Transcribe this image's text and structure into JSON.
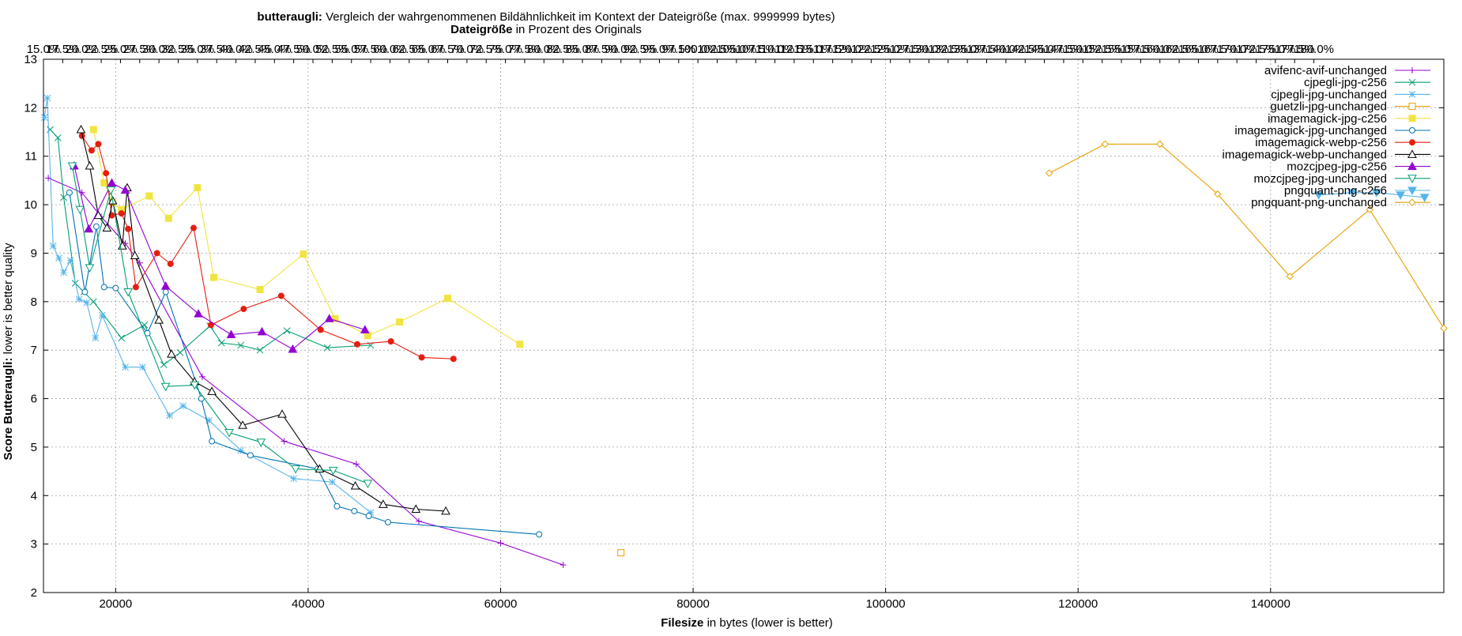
{
  "chart_data": {
    "type": "line",
    "title_bold": "butteraugli:",
    "title_rest": " Vergleich der wahrgenommenen Bildähnlichkeit im Kontext der Dateigröße (max. 9999999 bytes)",
    "subtitle_bold": "Dateigröße",
    "subtitle_rest": " in Prozent des Originals",
    "xlabel_bold": "Filesize",
    "xlabel_rest": " in bytes (lower is better)",
    "ylabel_bold": "Score Butteraugli:",
    "ylabel_rest": " lower is better quality",
    "xlim": [
      12500,
      158000
    ],
    "ylim": [
      2,
      13
    ],
    "grid": true,
    "legend_position": "top-right",
    "x_ticks": [
      {
        "value": 20000,
        "label": "20000"
      },
      {
        "value": 40000,
        "label": "40000"
      },
      {
        "value": 60000,
        "label": "60000"
      },
      {
        "value": 80000,
        "label": "80000"
      },
      {
        "value": 100000,
        "label": "100000"
      },
      {
        "value": 120000,
        "label": "120000"
      },
      {
        "value": 140000,
        "label": "140000"
      }
    ],
    "y_ticks": [
      {
        "value": 2,
        "label": "2"
      },
      {
        "value": 3,
        "label": "3"
      },
      {
        "value": 4,
        "label": "4"
      },
      {
        "value": 5,
        "label": "5"
      },
      {
        "value": 6,
        "label": "6"
      },
      {
        "value": 7,
        "label": "7"
      },
      {
        "value": 8,
        "label": "8"
      },
      {
        "value": 9,
        "label": "9"
      },
      {
        "value": 10,
        "label": "10"
      },
      {
        "value": 11,
        "label": "11"
      },
      {
        "value": 12,
        "label": "12"
      },
      {
        "value": 13,
        "label": "13"
      }
    ],
    "x2_ticks": [
      {
        "value": 12500,
        "label": "15.0%"
      },
      {
        "value": 14500,
        "label": "17.5%"
      },
      {
        "value": 16500,
        "label": "20.0%"
      },
      {
        "value": 18500,
        "label": "22.5%"
      },
      {
        "value": 20500,
        "label": "25.0%"
      },
      {
        "value": 22500,
        "label": "27.5%"
      },
      {
        "value": 24500,
        "label": "30.0%"
      },
      {
        "value": 26500,
        "label": "32.5%"
      },
      {
        "value": 28500,
        "label": "35.0%"
      },
      {
        "value": 30500,
        "label": "37.5%"
      },
      {
        "value": 32500,
        "label": "40.0%"
      },
      {
        "value": 34500,
        "label": "42.5%"
      },
      {
        "value": 36500,
        "label": "45.0%"
      },
      {
        "value": 38500,
        "label": "47.5%"
      },
      {
        "value": 40500,
        "label": "50.0%"
      },
      {
        "value": 42500,
        "label": "52.5%"
      },
      {
        "value": 44500,
        "label": "55.0%"
      },
      {
        "value": 46500,
        "label": "57.5%"
      },
      {
        "value": 48500,
        "label": "60.0%"
      },
      {
        "value": 50500,
        "label": "62.5%"
      },
      {
        "value": 52500,
        "label": "65.0%"
      },
      {
        "value": 54500,
        "label": "67.5%"
      },
      {
        "value": 56500,
        "label": "70.0%"
      },
      {
        "value": 58500,
        "label": "72.5%"
      },
      {
        "value": 60500,
        "label": "75.0%"
      },
      {
        "value": 62500,
        "label": "77.5%"
      },
      {
        "value": 64500,
        "label": "80.0%"
      },
      {
        "value": 66500,
        "label": "82.5%"
      },
      {
        "value": 68500,
        "label": "85.0%"
      },
      {
        "value": 70500,
        "label": "87.5%"
      },
      {
        "value": 72500,
        "label": "90.0%"
      },
      {
        "value": 74500,
        "label": "92.5%"
      },
      {
        "value": 76500,
        "label": "95.0%"
      },
      {
        "value": 78500,
        "label": "97.5%"
      },
      {
        "value": 80500,
        "label": "100.0%"
      },
      {
        "value": 82500,
        "label": "102.5%"
      },
      {
        "value": 84500,
        "label": "105.0%"
      },
      {
        "value": 86500,
        "label": "107.5%"
      },
      {
        "value": 88500,
        "label": "110.0%"
      },
      {
        "value": 90500,
        "label": "112.5%"
      },
      {
        "value": 92500,
        "label": "115.0%"
      },
      {
        "value": 94500,
        "label": "117.5%"
      },
      {
        "value": 96500,
        "label": "120.0%"
      },
      {
        "value": 98500,
        "label": "122.5%"
      },
      {
        "value": 100500,
        "label": "125.0%"
      },
      {
        "value": 102500,
        "label": "127.5%"
      },
      {
        "value": 104500,
        "label": "130.0%"
      },
      {
        "value": 106500,
        "label": "132.5%"
      },
      {
        "value": 108500,
        "label": "135.0%"
      },
      {
        "value": 110500,
        "label": "137.5%"
      },
      {
        "value": 112500,
        "label": "140.0%"
      },
      {
        "value": 114500,
        "label": "142.5%"
      },
      {
        "value": 116500,
        "label": "145.0%"
      },
      {
        "value": 118500,
        "label": "147.5%"
      },
      {
        "value": 120500,
        "label": "150.0%"
      },
      {
        "value": 122500,
        "label": "152.5%"
      },
      {
        "value": 124500,
        "label": "155.0%"
      },
      {
        "value": 126500,
        "label": "157.5%"
      },
      {
        "value": 128500,
        "label": "160.0%"
      },
      {
        "value": 130500,
        "label": "162.5%"
      },
      {
        "value": 132500,
        "label": "165.0%"
      },
      {
        "value": 134500,
        "label": "167.5%"
      },
      {
        "value": 136500,
        "label": "170.0%"
      },
      {
        "value": 138500,
        "label": "172.5%"
      },
      {
        "value": 140500,
        "label": "175.0%"
      },
      {
        "value": 142500,
        "label": "177.5%"
      },
      {
        "value": 144500,
        "label": "180.0%"
      }
    ],
    "series": [
      {
        "name": "avifenc-avif-unchanged",
        "color": "#9400d3",
        "marker": "plus",
        "points": [
          [
            13000,
            10.55
          ],
          [
            16500,
            10.25
          ],
          [
            18500,
            9.75
          ],
          [
            21000,
            9.2
          ],
          [
            22500,
            8.8
          ],
          [
            29000,
            6.45
          ],
          [
            37500,
            5.12
          ],
          [
            45000,
            4.65
          ],
          [
            51500,
            3.47
          ],
          [
            60000,
            3.02
          ],
          [
            66500,
            2.57
          ]
        ]
      },
      {
        "name": "cjpegli-jpg-c256",
        "color": "#009e73",
        "marker": "x",
        "points": [
          [
            13200,
            11.55
          ],
          [
            14000,
            11.38
          ],
          [
            14600,
            10.15
          ],
          [
            15800,
            8.38
          ],
          [
            16700,
            8.2
          ],
          [
            17700,
            8.0
          ],
          [
            20600,
            7.25
          ],
          [
            23000,
            7.52
          ],
          [
            25000,
            6.7
          ],
          [
            26700,
            6.95
          ],
          [
            29800,
            7.5
          ],
          [
            31000,
            7.15
          ],
          [
            33000,
            7.1
          ],
          [
            35000,
            7.0
          ],
          [
            37800,
            7.4
          ],
          [
            42000,
            7.05
          ],
          [
            46500,
            7.1
          ]
        ]
      },
      {
        "name": "cjpegli-jpg-unchanged",
        "color": "#56b4e9",
        "marker": "star",
        "points": [
          [
            12600,
            11.8
          ],
          [
            12900,
            12.2
          ],
          [
            13500,
            9.15
          ],
          [
            14100,
            8.9
          ],
          [
            14600,
            8.6
          ],
          [
            15300,
            8.85
          ],
          [
            16200,
            8.05
          ],
          [
            17000,
            7.98
          ],
          [
            17900,
            7.25
          ],
          [
            18600,
            7.72
          ],
          [
            21000,
            6.65
          ],
          [
            22800,
            6.65
          ],
          [
            25600,
            5.65
          ],
          [
            27000,
            5.85
          ],
          [
            29700,
            5.55
          ],
          [
            33000,
            4.93
          ],
          [
            38500,
            4.35
          ],
          [
            42500,
            4.28
          ],
          [
            46500,
            3.65
          ]
        ]
      },
      {
        "name": "guetzli-jpg-unchanged",
        "color": "#e69f00",
        "marker": "square-open",
        "points": [
          [
            72500,
            2.82
          ]
        ]
      },
      {
        "name": "imagemagick-jpg-c256",
        "color": "#f0e442",
        "marker": "square",
        "points": [
          [
            17700,
            11.55
          ],
          [
            18800,
            10.45
          ],
          [
            19700,
            10.05
          ],
          [
            20600,
            9.9
          ],
          [
            23500,
            10.18
          ],
          [
            25500,
            9.72
          ],
          [
            28500,
            10.35
          ],
          [
            30200,
            8.5
          ],
          [
            35000,
            8.25
          ],
          [
            39500,
            8.98
          ],
          [
            42800,
            7.65
          ],
          [
            46200,
            7.3
          ],
          [
            49500,
            7.58
          ],
          [
            54500,
            8.07
          ],
          [
            62000,
            7.12
          ]
        ]
      },
      {
        "name": "imagemagick-jpg-unchanged",
        "color": "#0072b2",
        "marker": "circle-open",
        "points": [
          [
            15200,
            10.25
          ],
          [
            16800,
            8.2
          ],
          [
            18000,
            9.55
          ],
          [
            18800,
            8.3
          ],
          [
            20000,
            8.28
          ],
          [
            23300,
            7.35
          ],
          [
            25200,
            8.2
          ],
          [
            28900,
            6.0
          ],
          [
            30000,
            5.12
          ],
          [
            34000,
            4.83
          ],
          [
            41000,
            4.55
          ],
          [
            43000,
            3.78
          ],
          [
            44800,
            3.68
          ],
          [
            46300,
            3.58
          ],
          [
            48300,
            3.45
          ],
          [
            64000,
            3.2
          ]
        ]
      },
      {
        "name": "imagemagick-webp-c256",
        "color": "#e51e10",
        "marker": "dot",
        "points": [
          [
            16500,
            11.42
          ],
          [
            17500,
            11.12
          ],
          [
            18200,
            11.25
          ],
          [
            19000,
            10.65
          ],
          [
            19600,
            9.78
          ],
          [
            20600,
            9.82
          ],
          [
            21300,
            9.5
          ],
          [
            22100,
            8.3
          ],
          [
            24300,
            9.0
          ],
          [
            25700,
            8.78
          ],
          [
            28100,
            9.52
          ],
          [
            29900,
            7.52
          ],
          [
            33300,
            7.85
          ],
          [
            37200,
            8.12
          ],
          [
            41300,
            7.42
          ],
          [
            45100,
            7.12
          ],
          [
            48600,
            7.18
          ],
          [
            51800,
            6.85
          ],
          [
            55100,
            6.82
          ]
        ]
      },
      {
        "name": "imagemagick-webp-unchanged",
        "color": "#000000",
        "marker": "triangle-open",
        "points": [
          [
            16400,
            11.55
          ],
          [
            17300,
            10.8
          ],
          [
            18200,
            9.78
          ],
          [
            19100,
            9.52
          ],
          [
            19700,
            10.08
          ],
          [
            20700,
            9.15
          ],
          [
            21200,
            10.35
          ],
          [
            22000,
            8.95
          ],
          [
            24500,
            7.62
          ],
          [
            25800,
            6.92
          ],
          [
            28200,
            6.35
          ],
          [
            30000,
            6.15
          ],
          [
            33200,
            5.45
          ],
          [
            37300,
            5.68
          ],
          [
            41200,
            4.55
          ],
          [
            44900,
            4.2
          ],
          [
            47800,
            3.82
          ],
          [
            51200,
            3.72
          ],
          [
            54300,
            3.68
          ]
        ]
      },
      {
        "name": "mozcjpeg-jpg-c256",
        "color": "#9400d3",
        "marker": "triangle",
        "points": [
          [
            15700,
            10.8
          ],
          [
            17200,
            9.5
          ],
          [
            19600,
            10.45
          ],
          [
            21000,
            10.3
          ],
          [
            25200,
            8.32
          ],
          [
            28600,
            7.75
          ],
          [
            32000,
            7.32
          ],
          [
            35200,
            7.38
          ],
          [
            38400,
            7.02
          ],
          [
            42200,
            7.65
          ],
          [
            45900,
            7.42
          ]
        ]
      },
      {
        "name": "mozcjpeg-jpg-unchanged",
        "color": "#009e73",
        "marker": "triangle-down-open",
        "points": [
          [
            15500,
            10.8
          ],
          [
            16300,
            9.9
          ],
          [
            17300,
            8.7
          ],
          [
            19500,
            10.3
          ],
          [
            21300,
            8.2
          ],
          [
            25200,
            6.25
          ],
          [
            28200,
            6.28
          ],
          [
            31800,
            5.3
          ],
          [
            35100,
            5.1
          ],
          [
            38700,
            4.55
          ],
          [
            42600,
            4.52
          ],
          [
            46200,
            4.25
          ]
        ]
      },
      {
        "name": "pngquant-png-c256",
        "color": "#56b4e9",
        "marker": "triangle-down",
        "points": [
          [
            145000,
            10.2
          ],
          [
            148500,
            10.25
          ],
          [
            151000,
            10.25
          ],
          [
            153500,
            10.2
          ],
          [
            156000,
            10.15
          ]
        ]
      },
      {
        "name": "pngquant-png-unchanged",
        "color": "#e69f00",
        "marker": "diamond-open",
        "points": [
          [
            117000,
            10.65
          ],
          [
            122800,
            11.25
          ],
          [
            128500,
            11.25
          ],
          [
            134500,
            10.22
          ],
          [
            142000,
            8.52
          ],
          [
            150300,
            9.9
          ],
          [
            158000,
            7.45
          ]
        ]
      }
    ]
  }
}
